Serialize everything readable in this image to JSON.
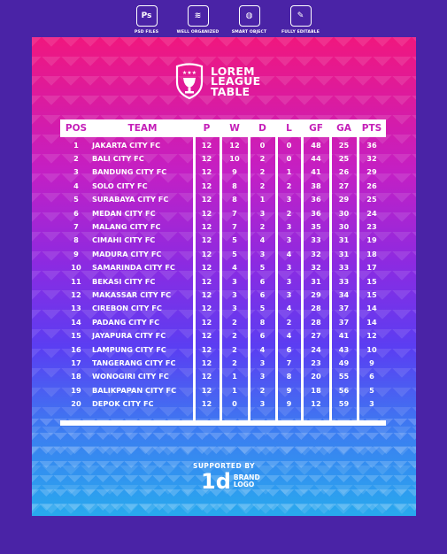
{
  "features": [
    {
      "icon": "Ps",
      "label": "PSD FILES"
    },
    {
      "icon": "≋",
      "label": "WELL ORGANIZED"
    },
    {
      "icon": "◍",
      "label": "SMART OBJECT"
    },
    {
      "icon": "✎",
      "label": "FULLY EDITABLE"
    }
  ],
  "logo": {
    "line1": "LOREM",
    "line2": "LEAGUE",
    "line3": "TABLE"
  },
  "headers": {
    "pos": "POS",
    "team": "TEAM",
    "p": "P",
    "w": "W",
    "d": "D",
    "l": "L",
    "gf": "GF",
    "ga": "GA",
    "pts": "PTS"
  },
  "rows": [
    {
      "pos": "1",
      "team": "JAKARTA CITY FC",
      "p": "12",
      "w": "12",
      "d": "0",
      "l": "0",
      "gf": "48",
      "ga": "25",
      "pts": "36"
    },
    {
      "pos": "2",
      "team": "BALI CITY FC",
      "p": "12",
      "w": "10",
      "d": "2",
      "l": "0",
      "gf": "44",
      "ga": "25",
      "pts": "32"
    },
    {
      "pos": "3",
      "team": "BANDUNG CITY FC",
      "p": "12",
      "w": "9",
      "d": "2",
      "l": "1",
      "gf": "41",
      "ga": "26",
      "pts": "29"
    },
    {
      "pos": "4",
      "team": "SOLO CITY FC",
      "p": "12",
      "w": "8",
      "d": "2",
      "l": "2",
      "gf": "38",
      "ga": "27",
      "pts": "26"
    },
    {
      "pos": "5",
      "team": "SURABAYA CITY FC",
      "p": "12",
      "w": "8",
      "d": "1",
      "l": "3",
      "gf": "36",
      "ga": "29",
      "pts": "25"
    },
    {
      "pos": "6",
      "team": "MEDAN CITY FC",
      "p": "12",
      "w": "7",
      "d": "3",
      "l": "2",
      "gf": "36",
      "ga": "30",
      "pts": "24"
    },
    {
      "pos": "7",
      "team": "MALANG CITY FC",
      "p": "12",
      "w": "7",
      "d": "2",
      "l": "3",
      "gf": "35",
      "ga": "30",
      "pts": "23"
    },
    {
      "pos": "8",
      "team": "CIMAHI CITY FC",
      "p": "12",
      "w": "5",
      "d": "4",
      "l": "3",
      "gf": "33",
      "ga": "31",
      "pts": "19"
    },
    {
      "pos": "9",
      "team": "MADURA CITY FC",
      "p": "12",
      "w": "5",
      "d": "3",
      "l": "4",
      "gf": "32",
      "ga": "31",
      "pts": "18"
    },
    {
      "pos": "10",
      "team": "SAMARINDA CITY FC",
      "p": "12",
      "w": "4",
      "d": "5",
      "l": "3",
      "gf": "32",
      "ga": "33",
      "pts": "17"
    },
    {
      "pos": "11",
      "team": "BEKASI CITY FC",
      "p": "12",
      "w": "3",
      "d": "6",
      "l": "3",
      "gf": "31",
      "ga": "33",
      "pts": "15"
    },
    {
      "pos": "12",
      "team": "MAKASSAR CITY FC",
      "p": "12",
      "w": "3",
      "d": "6",
      "l": "3",
      "gf": "29",
      "ga": "34",
      "pts": "15"
    },
    {
      "pos": "13",
      "team": "CIREBON CITY FC",
      "p": "12",
      "w": "3",
      "d": "5",
      "l": "4",
      "gf": "28",
      "ga": "37",
      "pts": "14"
    },
    {
      "pos": "14",
      "team": "PADANG CITY FC",
      "p": "12",
      "w": "2",
      "d": "8",
      "l": "2",
      "gf": "28",
      "ga": "37",
      "pts": "14"
    },
    {
      "pos": "15",
      "team": "JAYAPURA CITY FC",
      "p": "12",
      "w": "2",
      "d": "6",
      "l": "4",
      "gf": "27",
      "ga": "41",
      "pts": "12"
    },
    {
      "pos": "16",
      "team": "LAMPUNG CITY FC",
      "p": "12",
      "w": "2",
      "d": "4",
      "l": "6",
      "gf": "24",
      "ga": "43",
      "pts": "10"
    },
    {
      "pos": "17",
      "team": "TANGERANG CITY FC",
      "p": "12",
      "w": "2",
      "d": "3",
      "l": "7",
      "gf": "23",
      "ga": "49",
      "pts": "9"
    },
    {
      "pos": "18",
      "team": "WONOGIRI CITY FC",
      "p": "12",
      "w": "1",
      "d": "3",
      "l": "8",
      "gf": "20",
      "ga": "55",
      "pts": "6"
    },
    {
      "pos": "19",
      "team": "BALIKPAPAN CITY FC",
      "p": "12",
      "w": "1",
      "d": "2",
      "l": "9",
      "gf": "18",
      "ga": "56",
      "pts": "5"
    },
    {
      "pos": "20",
      "team": "DEPOK CITY FC",
      "p": "12",
      "w": "0",
      "d": "3",
      "l": "9",
      "gf": "12",
      "ga": "59",
      "pts": "3"
    }
  ],
  "footer": {
    "supported": "SUPPORTED BY",
    "brand_mark": "1d",
    "brand_line1": "BRAND",
    "brand_line2": "LOGO"
  },
  "colors": {
    "header_text": "#c41fb8",
    "bg": "#4a23a6",
    "gradient_top": "#f0177e",
    "gradient_bottom": "#28a9ee"
  }
}
